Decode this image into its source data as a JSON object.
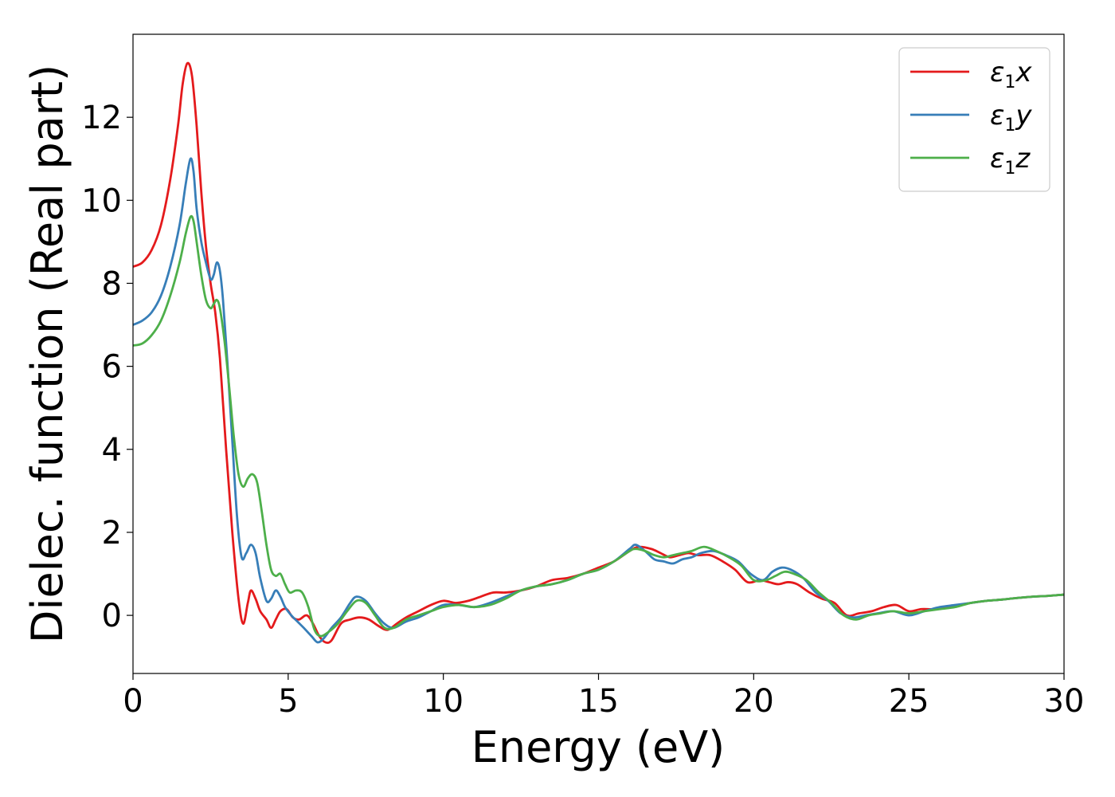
{
  "chart_data": {
    "type": "line",
    "title": "",
    "xlabel": "Energy (eV)",
    "ylabel": "Dielec. function (Real part)",
    "xlim": [
      0,
      30
    ],
    "ylim": [
      -1.4,
      14.0
    ],
    "xticks": [
      0,
      5,
      10,
      15,
      20,
      25,
      30
    ],
    "yticks": [
      0,
      2,
      4,
      6,
      8,
      10,
      12
    ],
    "grid": false,
    "legend_position": "top-right",
    "series": [
      {
        "name": "ε1x",
        "legend_main": "ε",
        "legend_sub": "1",
        "legend_suffix": "x",
        "color": "#e41a1c",
        "x": [
          0,
          0.3,
          0.6,
          0.9,
          1.2,
          1.45,
          1.6,
          1.75,
          1.9,
          2.05,
          2.2,
          2.35,
          2.5,
          2.65,
          2.8,
          3.0,
          3.2,
          3.4,
          3.55,
          3.7,
          3.8,
          3.95,
          4.1,
          4.3,
          4.45,
          4.6,
          4.75,
          4.95,
          5.15,
          5.35,
          5.6,
          5.8,
          6.0,
          6.2,
          6.4,
          6.7,
          7.0,
          7.3,
          7.6,
          7.9,
          8.2,
          8.5,
          8.8,
          9.2,
          9.6,
          10.0,
          10.4,
          10.8,
          11.2,
          11.6,
          12.0,
          12.5,
          13.0,
          13.5,
          14.0,
          14.5,
          15.0,
          15.5,
          16.0,
          16.3,
          16.7,
          17.0,
          17.3,
          17.6,
          17.9,
          18.2,
          18.6,
          19.0,
          19.4,
          19.8,
          20.2,
          20.5,
          20.8,
          21.1,
          21.4,
          21.8,
          22.2,
          22.6,
          23.0,
          23.4,
          23.8,
          24.2,
          24.6,
          25.0,
          25.4,
          25.8,
          26.2,
          26.6,
          27.0,
          27.5,
          28.0,
          28.5,
          29.0,
          29.5,
          30.0
        ],
        "y": [
          8.4,
          8.5,
          8.8,
          9.4,
          10.5,
          11.8,
          12.8,
          13.3,
          13.0,
          11.8,
          10.2,
          8.9,
          8.0,
          7.3,
          6.2,
          4.0,
          2.0,
          0.4,
          -0.2,
          0.3,
          0.6,
          0.4,
          0.1,
          -0.1,
          -0.3,
          -0.1,
          0.1,
          0.15,
          -0.05,
          -0.1,
          0.0,
          -0.2,
          -0.5,
          -0.65,
          -0.6,
          -0.2,
          -0.1,
          -0.05,
          -0.1,
          -0.25,
          -0.35,
          -0.2,
          -0.05,
          0.1,
          0.25,
          0.35,
          0.3,
          0.35,
          0.45,
          0.55,
          0.55,
          0.6,
          0.7,
          0.85,
          0.9,
          1.0,
          1.15,
          1.3,
          1.55,
          1.65,
          1.6,
          1.5,
          1.4,
          1.45,
          1.5,
          1.45,
          1.45,
          1.3,
          1.1,
          0.8,
          0.85,
          0.8,
          0.75,
          0.8,
          0.75,
          0.55,
          0.4,
          0.3,
          0.0,
          0.05,
          0.1,
          0.2,
          0.25,
          0.1,
          0.15,
          0.15,
          0.2,
          0.25,
          0.3,
          0.35,
          0.38,
          0.42,
          0.45,
          0.47,
          0.5
        ]
      },
      {
        "name": "ε1y",
        "legend_main": "ε",
        "legend_sub": "1",
        "legend_suffix": "y",
        "color": "#377eb8",
        "x": [
          0,
          0.3,
          0.6,
          0.9,
          1.2,
          1.5,
          1.7,
          1.85,
          1.95,
          2.05,
          2.2,
          2.35,
          2.5,
          2.6,
          2.7,
          2.8,
          2.9,
          3.05,
          3.2,
          3.35,
          3.5,
          3.65,
          3.8,
          3.95,
          4.1,
          4.3,
          4.45,
          4.6,
          4.75,
          4.9,
          5.1,
          5.3,
          5.5,
          5.75,
          5.95,
          6.15,
          6.4,
          6.7,
          7.0,
          7.2,
          7.5,
          7.8,
          8.1,
          8.4,
          8.8,
          9.2,
          9.6,
          10.0,
          10.5,
          11.0,
          11.5,
          12.0,
          12.5,
          13.0,
          13.5,
          14.0,
          14.5,
          15.0,
          15.5,
          16.0,
          16.2,
          16.5,
          16.8,
          17.1,
          17.4,
          17.7,
          18.0,
          18.3,
          18.7,
          19.1,
          19.5,
          19.9,
          20.3,
          20.6,
          20.9,
          21.2,
          21.6,
          22.0,
          22.4,
          22.8,
          23.2,
          23.6,
          24.0,
          24.5,
          25.0,
          25.5,
          26.0,
          26.5,
          27.0,
          27.5,
          28.0,
          28.5,
          29.0,
          29.5,
          30.0
        ],
        "y": [
          7.0,
          7.1,
          7.3,
          7.7,
          8.4,
          9.4,
          10.4,
          11.0,
          10.7,
          9.8,
          9.0,
          8.5,
          8.1,
          8.2,
          8.5,
          8.3,
          7.6,
          6.0,
          4.2,
          2.4,
          1.4,
          1.5,
          1.7,
          1.5,
          0.9,
          0.35,
          0.4,
          0.6,
          0.45,
          0.2,
          0.0,
          -0.15,
          -0.3,
          -0.5,
          -0.65,
          -0.55,
          -0.3,
          -0.05,
          0.3,
          0.45,
          0.35,
          0.05,
          -0.2,
          -0.3,
          -0.15,
          -0.05,
          0.1,
          0.25,
          0.25,
          0.2,
          0.3,
          0.45,
          0.6,
          0.7,
          0.75,
          0.85,
          1.0,
          1.1,
          1.3,
          1.6,
          1.7,
          1.55,
          1.35,
          1.3,
          1.25,
          1.35,
          1.4,
          1.5,
          1.55,
          1.45,
          1.3,
          1.0,
          0.85,
          1.05,
          1.15,
          1.1,
          0.9,
          0.55,
          0.35,
          0.05,
          -0.05,
          0.0,
          0.05,
          0.1,
          0.0,
          0.1,
          0.2,
          0.25,
          0.3,
          0.35,
          0.38,
          0.42,
          0.45,
          0.47,
          0.5
        ]
      },
      {
        "name": "ε1z",
        "legend_main": "ε",
        "legend_sub": "1",
        "legend_suffix": "z",
        "color": "#4daf4a",
        "x": [
          0,
          0.3,
          0.6,
          0.9,
          1.2,
          1.5,
          1.7,
          1.85,
          1.95,
          2.05,
          2.2,
          2.35,
          2.5,
          2.6,
          2.7,
          2.8,
          2.95,
          3.1,
          3.25,
          3.4,
          3.55,
          3.7,
          3.85,
          4.0,
          4.15,
          4.3,
          4.45,
          4.6,
          4.75,
          4.9,
          5.05,
          5.25,
          5.45,
          5.65,
          5.85,
          6.05,
          6.3,
          6.6,
          6.9,
          7.2,
          7.5,
          7.8,
          8.1,
          8.4,
          8.8,
          9.2,
          9.6,
          10.0,
          10.5,
          11.0,
          11.5,
          12.0,
          12.5,
          13.0,
          13.5,
          14.0,
          14.5,
          15.0,
          15.5,
          16.0,
          16.2,
          16.5,
          16.8,
          17.1,
          17.4,
          17.7,
          18.0,
          18.4,
          18.8,
          19.2,
          19.6,
          20.0,
          20.4,
          20.7,
          21.0,
          21.3,
          21.7,
          22.1,
          22.5,
          22.9,
          23.3,
          23.7,
          24.1,
          24.5,
          25.0,
          25.5,
          26.0,
          26.5,
          27.0,
          27.5,
          28.0,
          28.5,
          29.0,
          29.5,
          30.0
        ],
        "y": [
          6.5,
          6.55,
          6.75,
          7.1,
          7.7,
          8.5,
          9.2,
          9.6,
          9.5,
          9.0,
          8.2,
          7.6,
          7.4,
          7.5,
          7.6,
          7.4,
          6.6,
          5.5,
          4.3,
          3.4,
          3.1,
          3.3,
          3.4,
          3.2,
          2.5,
          1.7,
          1.1,
          0.95,
          1.0,
          0.75,
          0.55,
          0.6,
          0.55,
          0.2,
          -0.35,
          -0.5,
          -0.4,
          -0.2,
          0.1,
          0.35,
          0.3,
          0.0,
          -0.3,
          -0.3,
          -0.1,
          0.0,
          0.1,
          0.2,
          0.25,
          0.2,
          0.25,
          0.4,
          0.6,
          0.7,
          0.75,
          0.85,
          1.0,
          1.1,
          1.3,
          1.55,
          1.6,
          1.55,
          1.45,
          1.4,
          1.45,
          1.5,
          1.55,
          1.65,
          1.55,
          1.4,
          1.2,
          0.85,
          0.85,
          0.95,
          1.05,
          1.0,
          0.85,
          0.55,
          0.3,
          0.0,
          -0.1,
          0.0,
          0.05,
          0.1,
          0.05,
          0.1,
          0.15,
          0.2,
          0.3,
          0.35,
          0.38,
          0.42,
          0.45,
          0.47,
          0.5
        ]
      }
    ]
  }
}
